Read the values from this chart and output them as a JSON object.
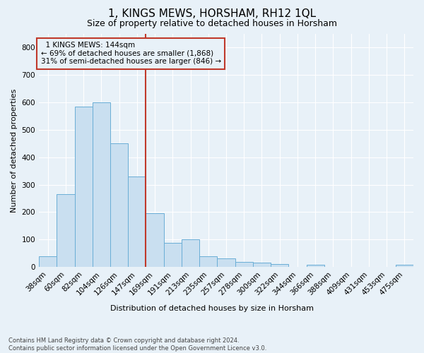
{
  "title": "1, KINGS MEWS, HORSHAM, RH12 1QL",
  "subtitle": "Size of property relative to detached houses in Horsham",
  "xlabel": "Distribution of detached houses by size in Horsham",
  "ylabel": "Number of detached properties",
  "categories": [
    "38sqm",
    "60sqm",
    "82sqm",
    "104sqm",
    "126sqm",
    "147sqm",
    "169sqm",
    "191sqm",
    "213sqm",
    "235sqm",
    "257sqm",
    "278sqm",
    "300sqm",
    "322sqm",
    "344sqm",
    "366sqm",
    "388sqm",
    "409sqm",
    "431sqm",
    "453sqm",
    "475sqm"
  ],
  "values": [
    40,
    265,
    585,
    600,
    450,
    330,
    195,
    88,
    100,
    40,
    32,
    18,
    15,
    10,
    0,
    8,
    0,
    0,
    0,
    0,
    8
  ],
  "bar_color": "#c9dff0",
  "bar_edge_color": "#6aaed6",
  "vline_x": 5.5,
  "vline_color": "#c0392b",
  "annotation_text": "  1 KINGS MEWS: 144sqm\n← 69% of detached houses are smaller (1,868)\n31% of semi-detached houses are larger (846) →",
  "annotation_box_color": "#c0392b",
  "ylim": [
    0,
    850
  ],
  "yticks": [
    0,
    100,
    200,
    300,
    400,
    500,
    600,
    700,
    800
  ],
  "footer_text": "Contains HM Land Registry data © Crown copyright and database right 2024.\nContains public sector information licensed under the Open Government Licence v3.0.",
  "background_color": "#e8f1f8",
  "grid_color": "#ffffff",
  "title_fontsize": 11,
  "subtitle_fontsize": 9,
  "axis_label_fontsize": 8,
  "tick_fontsize": 7.5,
  "footer_fontsize": 6,
  "annotation_fontsize": 7.5
}
